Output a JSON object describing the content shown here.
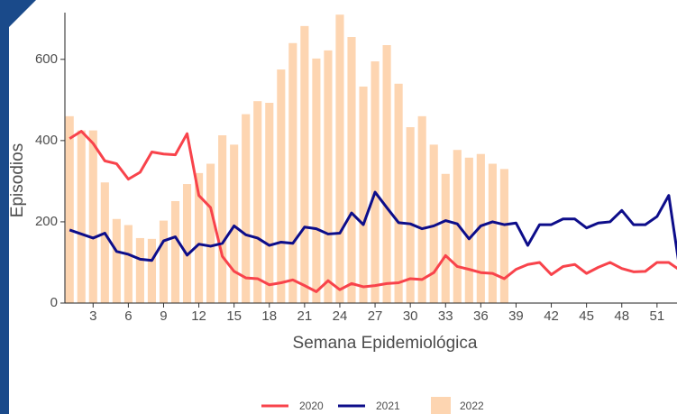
{
  "chart_data": {
    "type": "bar-line",
    "xlabel": "Semana Epidemiológica",
    "ylabel": "Episodios",
    "x": [
      1,
      2,
      3,
      4,
      5,
      6,
      7,
      8,
      9,
      10,
      11,
      12,
      13,
      14,
      15,
      16,
      17,
      18,
      19,
      20,
      21,
      22,
      23,
      24,
      25,
      26,
      27,
      28,
      29,
      30,
      31,
      32,
      33,
      34,
      35,
      36,
      37,
      38,
      39,
      40,
      41,
      42,
      43,
      44,
      45,
      46,
      47,
      48,
      49,
      50,
      51,
      52,
      53
    ],
    "xlim": [
      0.6,
      52.7
    ],
    "xticks": [
      3,
      6,
      9,
      12,
      15,
      18,
      21,
      24,
      27,
      30,
      33,
      36,
      39,
      42,
      45,
      48,
      51
    ],
    "ylim": [
      0,
      715
    ],
    "yticks": [
      0,
      200,
      400,
      600
    ],
    "series": [
      {
        "name": "2020",
        "kind": "line",
        "color": "#f8434b",
        "values": [
          405,
          423,
          393,
          350,
          343,
          305,
          322,
          372,
          367,
          365,
          417,
          265,
          235,
          115,
          78,
          62,
          60,
          45,
          50,
          57,
          43,
          28,
          55,
          33,
          48,
          40,
          43,
          48,
          50,
          60,
          58,
          75,
          117,
          90,
          83,
          75,
          73,
          60,
          83,
          95,
          100,
          70,
          90,
          95,
          73,
          88,
          100,
          85,
          77,
          78,
          100,
          100,
          80
        ]
      },
      {
        "name": "2021",
        "kind": "line",
        "color": "#0d0d8a",
        "values": [
          180,
          170,
          160,
          172,
          127,
          120,
          108,
          105,
          153,
          163,
          118,
          145,
          140,
          147,
          190,
          168,
          160,
          142,
          150,
          147,
          187,
          183,
          170,
          172,
          222,
          193,
          273,
          235,
          198,
          195,
          183,
          190,
          203,
          195,
          158,
          190,
          200,
          193,
          197,
          142,
          193,
          193,
          207,
          207,
          185,
          197,
          200,
          228,
          193,
          193,
          213,
          265,
          70
        ]
      },
      {
        "name": "2022",
        "kind": "bar",
        "color": "#fdd5b1",
        "values": [
          460,
          425,
          425,
          297,
          207,
          192,
          160,
          158,
          203,
          251,
          293,
          320,
          343,
          413,
          390,
          465,
          497,
          493,
          575,
          640,
          682,
          602,
          622,
          710,
          655,
          533,
          595,
          635,
          540,
          433,
          460,
          390,
          318,
          377,
          358,
          367,
          343,
          330,
          null,
          null,
          null,
          null,
          null,
          null,
          null,
          null,
          null,
          null,
          null,
          null,
          null,
          null,
          null
        ]
      }
    ]
  }
}
